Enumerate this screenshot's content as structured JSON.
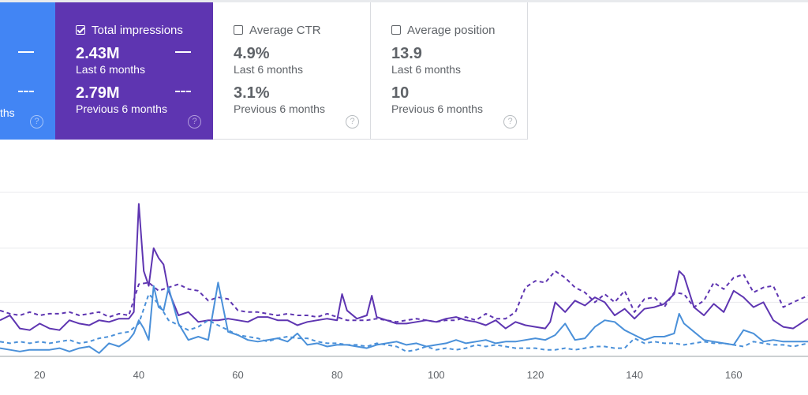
{
  "cards": {
    "clicks": {
      "partial_label": "ths",
      "color": "#4285f4"
    },
    "impressions": {
      "label": "Total impressions",
      "checked": true,
      "value": "2.43M",
      "period": "Last 6 months",
      "prev_value": "2.79M",
      "prev_period": "Previous 6 months",
      "color": "#5e35b1"
    },
    "ctr": {
      "label": "Average CTR",
      "checked": false,
      "value": "4.9%",
      "period": "Last 6 months",
      "prev_value": "3.1%",
      "prev_period": "Previous 6 months"
    },
    "position": {
      "label": "Average position",
      "checked": false,
      "value": "13.9",
      "period": "Last 6 months",
      "prev_value": "10",
      "prev_period": "Previous 6 months"
    },
    "help_glyph": "?"
  },
  "chart_data": {
    "type": "line",
    "x_ticks": [
      20,
      40,
      60,
      80,
      100,
      120,
      140,
      160
    ],
    "xlim": [
      12,
      175
    ],
    "ylim": [
      0,
      100
    ],
    "grid": true,
    "series": [
      {
        "key": "impressions_last",
        "style": "solid",
        "color": "#5e35b1",
        "x": [
          12,
          14,
          16,
          18,
          20,
          22,
          24,
          26,
          28,
          30,
          32,
          34,
          36,
          38,
          39,
          40,
          41,
          42,
          43,
          44,
          45,
          46,
          48,
          50,
          52,
          54,
          56,
          58,
          60,
          62,
          64,
          66,
          68,
          70,
          72,
          74,
          76,
          78,
          80,
          81,
          82,
          84,
          86,
          87,
          88,
          90,
          92,
          94,
          96,
          98,
          100,
          102,
          104,
          106,
          108,
          110,
          112,
          114,
          116,
          118,
          120,
          122,
          123,
          124,
          126,
          128,
          130,
          132,
          134,
          136,
          138,
          140,
          142,
          144,
          146,
          148,
          149,
          150,
          152,
          154,
          156,
          158,
          160,
          162,
          164,
          166,
          168,
          170,
          172,
          175
        ],
        "y": [
          22,
          25,
          17,
          16,
          20,
          17,
          16,
          22,
          20,
          19,
          22,
          21,
          23,
          23,
          27,
          93,
          52,
          43,
          66,
          60,
          56,
          40,
          25,
          27,
          21,
          22,
          22,
          23,
          22,
          21,
          24,
          24,
          22,
          22,
          19,
          21,
          22,
          23,
          22,
          38,
          28,
          23,
          25,
          37,
          24,
          22,
          20,
          20,
          21,
          22,
          21,
          23,
          24,
          22,
          21,
          19,
          22,
          17,
          21,
          19,
          18,
          17,
          21,
          33,
          27,
          34,
          31,
          36,
          33,
          25,
          29,
          23,
          29,
          30,
          32,
          38,
          52,
          49,
          30,
          25,
          32,
          27,
          40,
          36,
          30,
          33,
          22,
          18,
          17,
          23
        ]
      },
      {
        "key": "impressions_previous",
        "style": "dashed",
        "color": "#5e35b1",
        "x": [
          12,
          14,
          16,
          18,
          20,
          22,
          24,
          26,
          28,
          30,
          32,
          34,
          36,
          38,
          40,
          42,
          44,
          46,
          48,
          50,
          52,
          54,
          56,
          58,
          60,
          62,
          64,
          66,
          68,
          70,
          72,
          74,
          76,
          78,
          80,
          82,
          84,
          86,
          88,
          90,
          92,
          94,
          96,
          98,
          100,
          102,
          104,
          106,
          108,
          110,
          112,
          114,
          116,
          118,
          120,
          122,
          124,
          126,
          128,
          130,
          132,
          134,
          136,
          138,
          140,
          142,
          144,
          146,
          148,
          150,
          152,
          154,
          156,
          158,
          160,
          162,
          164,
          166,
          168,
          170,
          172,
          175
        ],
        "y": [
          28,
          26,
          25,
          27,
          25,
          26,
          26,
          27,
          25,
          26,
          27,
          24,
          26,
          25,
          44,
          45,
          40,
          42,
          44,
          41,
          40,
          34,
          36,
          35,
          28,
          27,
          27,
          26,
          25,
          26,
          25,
          25,
          24,
          26,
          24,
          22,
          22,
          22,
          23,
          22,
          21,
          22,
          23,
          22,
          21,
          22,
          22,
          24,
          22,
          26,
          23,
          23,
          27,
          42,
          46,
          45,
          52,
          48,
          42,
          39,
          33,
          38,
          33,
          40,
          27,
          35,
          36,
          30,
          39,
          38,
          30,
          34,
          45,
          41,
          48,
          50,
          39,
          42,
          43,
          30,
          33,
          37
        ]
      },
      {
        "key": "clicks_last",
        "style": "solid",
        "color": "#4a90d9",
        "x": [
          12,
          14,
          16,
          18,
          20,
          22,
          24,
          26,
          28,
          30,
          32,
          34,
          36,
          38,
          39,
          40,
          41,
          42,
          43,
          44,
          45,
          46,
          48,
          50,
          52,
          54,
          56,
          58,
          60,
          62,
          64,
          66,
          68,
          70,
          72,
          74,
          76,
          78,
          80,
          82,
          84,
          86,
          88,
          90,
          92,
          94,
          96,
          98,
          100,
          102,
          104,
          106,
          108,
          110,
          112,
          114,
          116,
          118,
          120,
          122,
          124,
          126,
          128,
          130,
          132,
          134,
          136,
          138,
          140,
          142,
          144,
          146,
          148,
          149,
          150,
          152,
          154,
          156,
          158,
          160,
          162,
          164,
          166,
          168,
          170,
          172,
          175
        ],
        "y": [
          5,
          4,
          3,
          4,
          4,
          4,
          5,
          3,
          5,
          6,
          2,
          8,
          6,
          10,
          14,
          22,
          17,
          10,
          43,
          30,
          28,
          42,
          20,
          10,
          12,
          10,
          45,
          15,
          13,
          10,
          9,
          10,
          11,
          9,
          14,
          7,
          8,
          6,
          7,
          7,
          6,
          5,
          7,
          8,
          9,
          7,
          8,
          6,
          7,
          8,
          10,
          8,
          9,
          10,
          8,
          9,
          9,
          10,
          11,
          10,
          13,
          20,
          10,
          11,
          18,
          22,
          21,
          16,
          13,
          10,
          12,
          12,
          14,
          26,
          20,
          15,
          10,
          9,
          8,
          7,
          16,
          14,
          9,
          10,
          9,
          9,
          9
        ]
      },
      {
        "key": "clicks_previous",
        "style": "dashed",
        "color": "#4a90d9",
        "x": [
          12,
          14,
          16,
          18,
          20,
          22,
          24,
          26,
          28,
          30,
          32,
          34,
          36,
          38,
          40,
          42,
          44,
          46,
          48,
          50,
          52,
          54,
          56,
          58,
          60,
          62,
          64,
          66,
          68,
          70,
          72,
          74,
          76,
          78,
          80,
          82,
          84,
          86,
          88,
          90,
          92,
          94,
          96,
          98,
          100,
          102,
          104,
          106,
          108,
          110,
          112,
          114,
          116,
          118,
          120,
          122,
          124,
          126,
          128,
          130,
          132,
          134,
          136,
          138,
          140,
          142,
          144,
          146,
          148,
          150,
          152,
          154,
          156,
          158,
          160,
          162,
          164,
          166,
          168,
          170,
          172,
          175
        ],
        "y": [
          9,
          8,
          9,
          8,
          9,
          8,
          9,
          10,
          8,
          9,
          11,
          12,
          14,
          15,
          20,
          38,
          32,
          22,
          19,
          16,
          18,
          22,
          19,
          16,
          13,
          12,
          11,
          9,
          11,
          12,
          11,
          11,
          9,
          8,
          8,
          7,
          7,
          6,
          8,
          7,
          6,
          3,
          4,
          6,
          4,
          5,
          4,
          5,
          7,
          6,
          7,
          6,
          5,
          5,
          5,
          4,
          4,
          5,
          4,
          5,
          6,
          6,
          5,
          5,
          11,
          8,
          9,
          8,
          8,
          7,
          8,
          9,
          8,
          8,
          7,
          6,
          9,
          8,
          7,
          7,
          6,
          8
        ]
      }
    ]
  }
}
